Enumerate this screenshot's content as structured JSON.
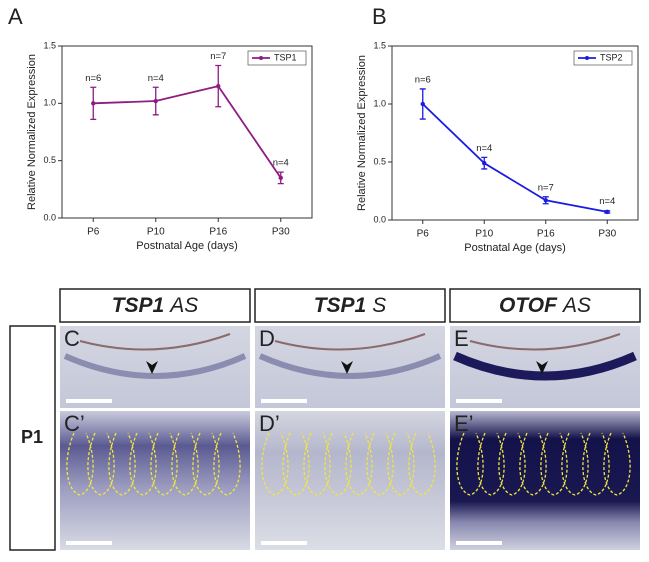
{
  "chart_data": [
    {
      "type": "line",
      "panel": "A",
      "ylabel": "Relative Normalized Expression",
      "xlabel": "Postnatal Age (days)",
      "categories": [
        "P6",
        "P10",
        "P16",
        "P30"
      ],
      "series": [
        {
          "name": "TSP1",
          "color": "#8e1c82",
          "values": [
            1.0,
            1.02,
            1.15,
            0.35
          ],
          "errors": [
            0.14,
            0.12,
            0.18,
            0.05
          ]
        }
      ],
      "annotations": [
        "n=6",
        "n=4",
        "n=7",
        "n=4"
      ],
      "ylim": [
        0,
        1.5
      ],
      "yticks": [
        {
          "value": 0,
          "label": "0.0"
        },
        0.5,
        {
          "value": 1,
          "label": "1.0"
        },
        1.5
      ],
      "legend": "upper right"
    },
    {
      "type": "line",
      "panel": "B",
      "ylabel": "Relative Normalized Expression",
      "xlabel": "Postnatal Age (days)",
      "categories": [
        "P6",
        "P10",
        "P16",
        "P30"
      ],
      "series": [
        {
          "name": "TSP2",
          "color": "#1c1ce0",
          "values": [
            1.0,
            0.49,
            0.17,
            0.07
          ],
          "errors": [
            0.13,
            0.05,
            0.03,
            0.01
          ]
        }
      ],
      "annotations": [
        "n=6",
        "n=4",
        "n=7",
        "n=4"
      ],
      "ylim": [
        0,
        1.5
      ],
      "yticks": [
        {
          "value": 0,
          "label": "0.0"
        },
        0.5,
        {
          "value": 1,
          "label": "1.0"
        },
        1.5
      ],
      "legend": "upper right"
    }
  ],
  "columns": [
    {
      "gene": "TSP1",
      "probe": "AS"
    },
    {
      "gene": "TSP1",
      "probe": "S"
    },
    {
      "gene": "OTOF",
      "probe": "AS"
    }
  ],
  "row_label": "P1",
  "panels": [
    [
      "C",
      "D",
      "E"
    ],
    [
      "C’",
      "D’",
      "E’"
    ]
  ]
}
